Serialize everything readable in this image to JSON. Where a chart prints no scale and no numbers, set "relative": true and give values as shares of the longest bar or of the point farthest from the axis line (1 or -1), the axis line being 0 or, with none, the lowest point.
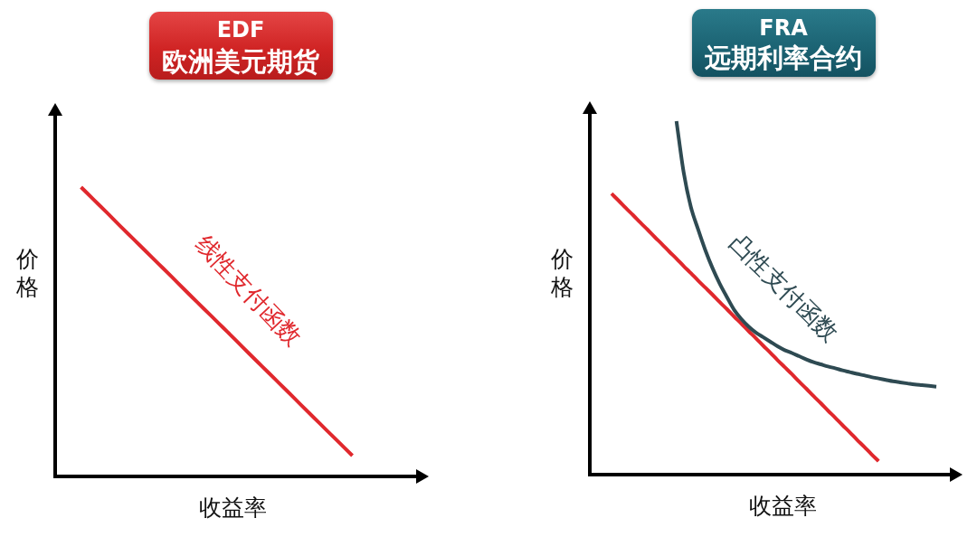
{
  "chart_data": [
    {
      "type": "line",
      "title": "EDF",
      "subtitle": "欧洲美元期货",
      "xlabel": "收益率",
      "ylabel": "价格",
      "relative": true,
      "tick_labels": false,
      "categories": [
        null,
        null,
        null,
        null,
        null,
        null,
        null,
        null,
        null,
        null,
        null,
        null,
        null,
        null,
        null,
        null,
        null,
        null,
        null,
        null,
        null,
        null,
        null,
        null,
        null,
        null,
        null,
        null,
        null
      ],
      "series": [
        {
          "name": "线性支付函数",
          "color": "#e0282d",
          "values": [
            null,
            null,
            1,
            0.956,
            0.912,
            0.867,
            0.823,
            0.779,
            0.735,
            0.691,
            0.646,
            0.602,
            0.558,
            0.514,
            0.47,
            0.425,
            0.381,
            0.337,
            0.293,
            0.248,
            0.204,
            0.16,
            0.116,
            0.072,
            null,
            null,
            null,
            null,
            null
          ]
        }
      ]
    },
    {
      "type": "line",
      "title": "FRA",
      "subtitle": "远期利率合约",
      "xlabel": "收益率",
      "ylabel": "价格",
      "relative": true,
      "tick_labels": false,
      "categories": [
        null,
        null,
        null,
        null,
        null,
        null,
        null,
        null,
        null,
        null,
        null,
        null,
        null,
        null,
        null,
        null,
        null,
        null,
        null,
        null,
        null,
        null,
        null,
        null,
        null,
        null,
        null,
        null,
        null,
        null,
        null,
        null,
        null,
        null,
        null,
        null,
        null,
        null,
        null,
        null,
        null,
        null,
        null,
        null,
        null,
        null,
        null,
        null,
        null,
        null,
        null
      ],
      "series": [
        {
          "name": "凸性支付函数",
          "color": "#2e4a52",
          "values": [
            null,
            null,
            null,
            null,
            null,
            null,
            null,
            null,
            null,
            null,
            null,
            null,
            1,
            0.855,
            0.757,
            0.694,
            0.635,
            0.584,
            0.54,
            0.502,
            0.466,
            0.44,
            0.419,
            0.402,
            0.389,
            0.376,
            0.363,
            0.352,
            0.344,
            0.335,
            0.326,
            0.318,
            0.312,
            0.306,
            0.301,
            0.295,
            0.29,
            0.285,
            0.281,
            0.276,
            0.272,
            0.268,
            0.264,
            0.261,
            0.258,
            0.255,
            0.253,
            0.251,
            0.249,
            null,
            null
          ]
        },
        {
          "color": "#e0282d",
          "values": [
            null,
            null,
            null,
            0.795,
            0.775,
            0.754,
            0.734,
            0.713,
            0.693,
            0.672,
            0.652,
            0.631,
            0.611,
            0.59,
            0.57,
            0.549,
            0.529,
            0.509,
            0.488,
            0.468,
            0.447,
            0.427,
            0.406,
            0.386,
            0.365,
            0.345,
            0.324,
            0.304,
            0.284,
            0.263,
            0.243,
            0.222,
            0.202,
            0.181,
            0.161,
            0.14,
            0.12,
            0.099,
            0.079,
            0.058,
            0.038,
            null,
            null,
            null,
            null,
            null,
            null,
            null,
            null,
            null,
            null
          ]
        }
      ]
    }
  ]
}
